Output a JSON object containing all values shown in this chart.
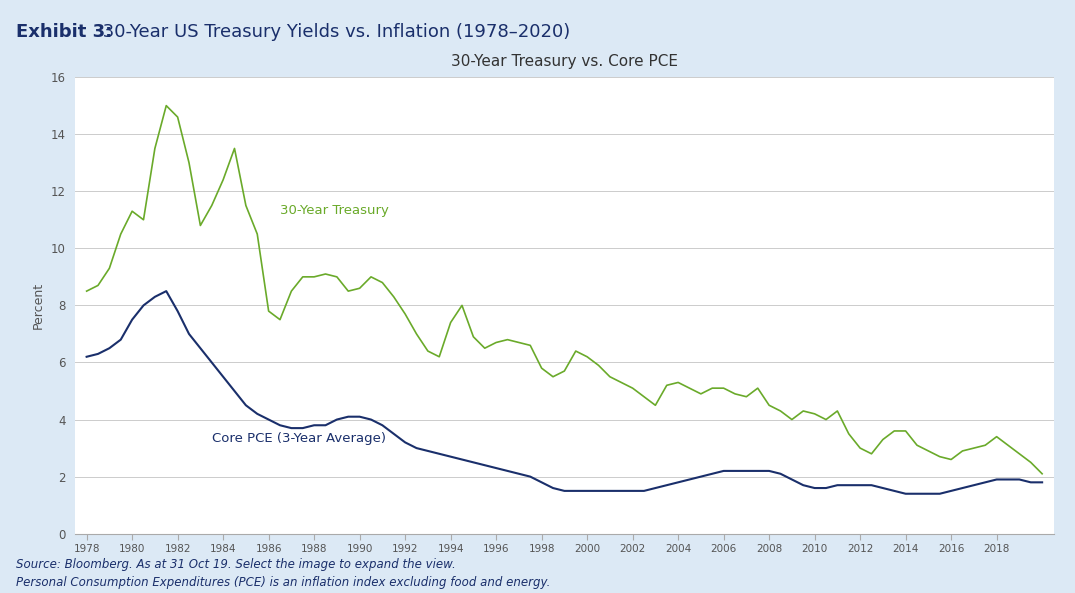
{
  "title_exhibit": "Exhibit 3:",
  "title_exhibit_rest": " 30-Year US Treasury Yields vs. Inflation (1978–2020)",
  "chart_title": "30-Year Treasury vs. Core PCE",
  "ylabel": "Percent",
  "source_text": "Source: Bloomberg. As at 31 Oct 19. Select the image to expand the view.\nPersonal Consumption Expenditures (PCE) is an inflation index excluding food and energy.",
  "background_outer": "#dce9f5",
  "background_inner": "#ffffff",
  "treasury_color": "#6aaa2a",
  "pce_color": "#1a2f6b",
  "treasury_label": "30-Year Treasury",
  "pce_label": "Core PCE (3-Year Average)",
  "xlim": [
    1977.5,
    2020.5
  ],
  "ylim": [
    0,
    16
  ],
  "yticks": [
    0,
    2,
    4,
    6,
    8,
    10,
    12,
    14,
    16
  ],
  "xticks": [
    1978,
    1980,
    1982,
    1984,
    1986,
    1988,
    1990,
    1992,
    1994,
    1996,
    1998,
    2000,
    2002,
    2004,
    2006,
    2008,
    2010,
    2012,
    2014,
    2016,
    2018
  ],
  "treasury_data": {
    "years": [
      1978,
      1978.5,
      1979,
      1979.5,
      1980,
      1980.5,
      1981,
      1981.5,
      1982,
      1982.5,
      1983,
      1983.5,
      1984,
      1984.5,
      1985,
      1985.5,
      1986,
      1986.5,
      1987,
      1987.5,
      1988,
      1988.5,
      1989,
      1989.5,
      1990,
      1990.5,
      1991,
      1991.5,
      1992,
      1992.5,
      1993,
      1993.5,
      1994,
      1994.5,
      1995,
      1995.5,
      1996,
      1996.5,
      1997,
      1997.5,
      1998,
      1998.5,
      1999,
      1999.5,
      2000,
      2000.5,
      2001,
      2001.5,
      2002,
      2002.5,
      2003,
      2003.5,
      2004,
      2004.5,
      2005,
      2005.5,
      2006,
      2006.5,
      2007,
      2007.5,
      2008,
      2008.5,
      2009,
      2009.5,
      2010,
      2010.5,
      2011,
      2011.5,
      2012,
      2012.5,
      2013,
      2013.5,
      2014,
      2014.5,
      2015,
      2015.5,
      2016,
      2016.5,
      2017,
      2017.5,
      2018,
      2018.5,
      2019,
      2019.5,
      2020
    ],
    "values": [
      8.5,
      8.7,
      9.3,
      10.5,
      11.3,
      11.0,
      13.5,
      15.0,
      14.6,
      13.0,
      10.8,
      11.5,
      12.4,
      13.5,
      11.5,
      10.5,
      7.8,
      7.5,
      8.5,
      9.0,
      9.0,
      9.1,
      9.0,
      8.5,
      8.6,
      9.0,
      8.8,
      8.3,
      7.7,
      7.0,
      6.4,
      6.2,
      7.4,
      8.0,
      6.9,
      6.5,
      6.7,
      6.8,
      6.7,
      6.6,
      5.8,
      5.5,
      5.7,
      6.4,
      6.2,
      5.9,
      5.5,
      5.3,
      5.1,
      4.8,
      4.5,
      5.2,
      5.3,
      5.1,
      4.9,
      5.1,
      5.1,
      4.9,
      4.8,
      5.1,
      4.5,
      4.3,
      4.0,
      4.3,
      4.2,
      4.0,
      4.3,
      3.5,
      3.0,
      2.8,
      3.3,
      3.6,
      3.6,
      3.1,
      2.9,
      2.7,
      2.6,
      2.9,
      3.0,
      3.1,
      3.4,
      3.1,
      2.8,
      2.5,
      2.1
    ]
  },
  "pce_data": {
    "years": [
      1978,
      1978.5,
      1979,
      1979.5,
      1980,
      1980.5,
      1981,
      1981.5,
      1982,
      1982.5,
      1983,
      1983.5,
      1984,
      1984.5,
      1985,
      1985.5,
      1986,
      1986.5,
      1987,
      1987.5,
      1988,
      1988.5,
      1989,
      1989.5,
      1990,
      1990.5,
      1991,
      1991.5,
      1992,
      1992.5,
      1993,
      1993.5,
      1994,
      1994.5,
      1995,
      1995.5,
      1996,
      1996.5,
      1997,
      1997.5,
      1998,
      1998.5,
      1999,
      1999.5,
      2000,
      2000.5,
      2001,
      2001.5,
      2002,
      2002.5,
      2003,
      2003.5,
      2004,
      2004.5,
      2005,
      2005.5,
      2006,
      2006.5,
      2007,
      2007.5,
      2008,
      2008.5,
      2009,
      2009.5,
      2010,
      2010.5,
      2011,
      2011.5,
      2012,
      2012.5,
      2013,
      2013.5,
      2014,
      2014.5,
      2015,
      2015.5,
      2016,
      2016.5,
      2017,
      2017.5,
      2018,
      2018.5,
      2019,
      2019.5,
      2020
    ],
    "values": [
      6.2,
      6.3,
      6.5,
      6.8,
      7.5,
      8.0,
      8.3,
      8.5,
      7.8,
      7.0,
      6.5,
      6.0,
      5.5,
      5.0,
      4.5,
      4.2,
      4.0,
      3.8,
      3.7,
      3.7,
      3.8,
      3.8,
      4.0,
      4.1,
      4.1,
      4.0,
      3.8,
      3.5,
      3.2,
      3.0,
      2.9,
      2.8,
      2.7,
      2.6,
      2.5,
      2.4,
      2.3,
      2.2,
      2.1,
      2.0,
      1.8,
      1.6,
      1.5,
      1.5,
      1.5,
      1.5,
      1.5,
      1.5,
      1.5,
      1.5,
      1.6,
      1.7,
      1.8,
      1.9,
      2.0,
      2.1,
      2.2,
      2.2,
      2.2,
      2.2,
      2.2,
      2.1,
      1.9,
      1.7,
      1.6,
      1.6,
      1.7,
      1.7,
      1.7,
      1.7,
      1.6,
      1.5,
      1.4,
      1.4,
      1.4,
      1.4,
      1.5,
      1.6,
      1.7,
      1.8,
      1.9,
      1.9,
      1.9,
      1.8,
      1.8
    ]
  }
}
